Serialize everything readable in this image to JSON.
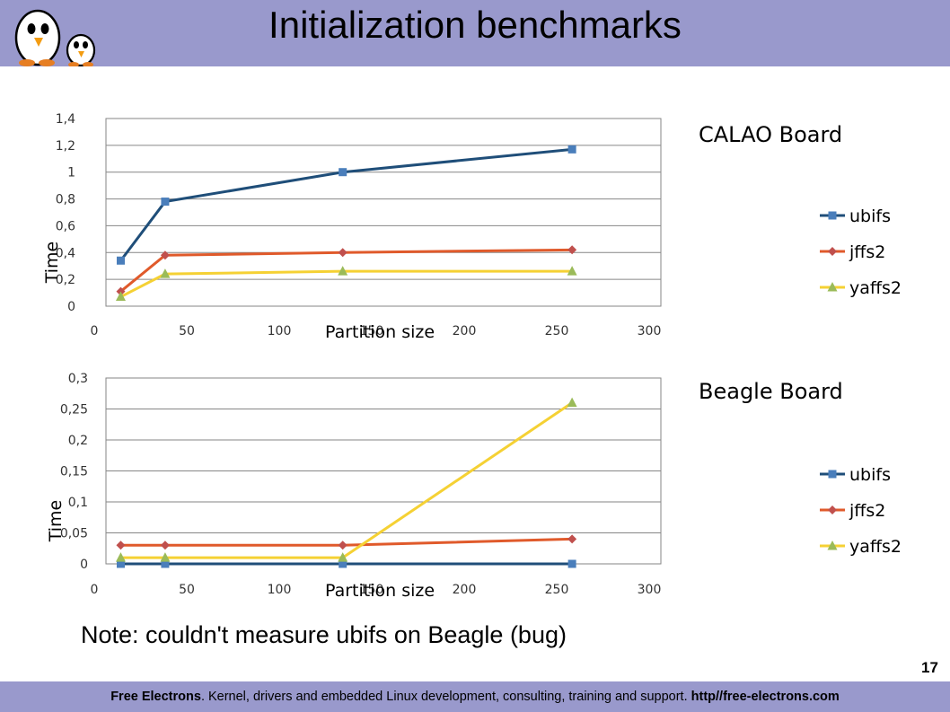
{
  "slide": {
    "title": "Initialization benchmarks",
    "note": "Note: couldn't measure ubifs on Beagle (bug)",
    "page_number": "17",
    "footer": {
      "company": "Free Electrons",
      "tagline": ". Kernel, drivers and embedded Linux development, consulting, training and support. ",
      "url": "http//free-electrons.com"
    }
  },
  "colors": {
    "header_band": "#9999cc",
    "ubifs": "#1f4e79",
    "ubifs_marker": "#4a7ebb",
    "jffs2": "#e05a2b",
    "jffs2_marker": "#c0504d",
    "yaffs2": "#f5d134",
    "yaffs2_marker": "#9bbb59"
  },
  "chart_data": [
    {
      "type": "line",
      "title": "CALAO Board",
      "xlabel": "Partition size",
      "ylabel": "Time",
      "xlim": [
        0,
        300
      ],
      "ylim": [
        0,
        1.4
      ],
      "x_ticks": [
        "0",
        "50",
        "100",
        "150",
        "200",
        "250",
        "300"
      ],
      "y_ticks": [
        "0",
        "0,2",
        "0,4",
        "0,6",
        "0,8",
        "1",
        "1,2",
        "1,4"
      ],
      "grid": true,
      "legend_position": "right",
      "series": [
        {
          "name": "ubifs",
          "marker": "square",
          "x": [
            8,
            32,
            128,
            252
          ],
          "y": [
            0.34,
            0.78,
            1.0,
            1.17
          ]
        },
        {
          "name": "jffs2",
          "marker": "diamond",
          "x": [
            8,
            32,
            128,
            252
          ],
          "y": [
            0.11,
            0.38,
            0.4,
            0.42
          ]
        },
        {
          "name": "yaffs2",
          "marker": "triangle",
          "x": [
            8,
            32,
            128,
            252
          ],
          "y": [
            0.07,
            0.24,
            0.26,
            0.26
          ]
        }
      ]
    },
    {
      "type": "line",
      "title": "Beagle Board",
      "xlabel": "Partition size",
      "ylabel": "Time",
      "xlim": [
        0,
        300
      ],
      "ylim": [
        0,
        0.3
      ],
      "x_ticks": [
        "0",
        "50",
        "100",
        "150",
        "200",
        "250",
        "300"
      ],
      "y_ticks": [
        "0",
        "0,05",
        "0,1",
        "0,15",
        "0,2",
        "0,25",
        "0,3"
      ],
      "grid": true,
      "legend_position": "right",
      "series": [
        {
          "name": "ubifs",
          "marker": "square",
          "x": [
            8,
            32,
            128,
            252
          ],
          "y": [
            0,
            0,
            0,
            0
          ]
        },
        {
          "name": "jffs2",
          "marker": "diamond",
          "x": [
            8,
            32,
            128,
            252
          ],
          "y": [
            0.03,
            0.03,
            0.03,
            0.04
          ]
        },
        {
          "name": "yaffs2",
          "marker": "triangle",
          "x": [
            8,
            32,
            128,
            252
          ],
          "y": [
            0.01,
            0.01,
            0.01,
            0.26
          ]
        }
      ]
    }
  ]
}
